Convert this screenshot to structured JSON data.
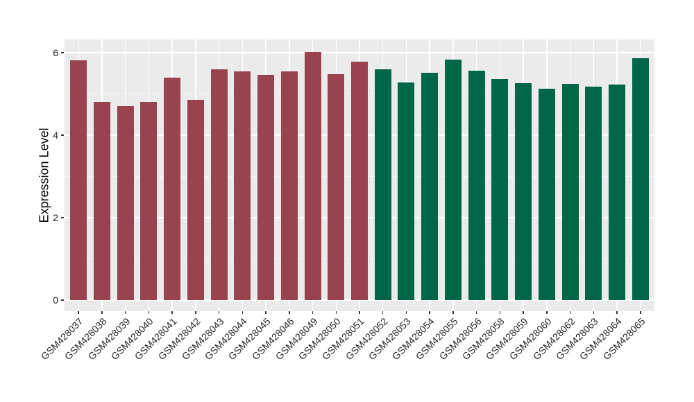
{
  "chart_data": {
    "type": "bar",
    "title": "",
    "xlabel": "",
    "ylabel": "Expression Level",
    "categories": [
      "GSM428037",
      "GSM428038",
      "GSM428039",
      "GSM428040",
      "GSM428041",
      "GSM428042",
      "GSM428043",
      "GSM428044",
      "GSM428045",
      "GSM428046",
      "GSM428049",
      "GSM428050",
      "GSM428051",
      "GSM428052",
      "GSM428053",
      "GSM428054",
      "GSM428055",
      "GSM428056",
      "GSM428058",
      "GSM428059",
      "GSM428060",
      "GSM428062",
      "GSM428063",
      "GSM428064",
      "GSM428065"
    ],
    "values": [
      5.82,
      4.8,
      4.71,
      4.81,
      5.4,
      4.86,
      5.59,
      5.55,
      5.47,
      5.55,
      6.02,
      5.48,
      5.78,
      5.6,
      5.28,
      5.51,
      5.84,
      5.57,
      5.36,
      5.26,
      5.12,
      5.24,
      5.17,
      5.23,
      5.86
    ],
    "bar_groups": [
      "group1",
      "group1",
      "group1",
      "group1",
      "group1",
      "group1",
      "group1",
      "group1",
      "group1",
      "group1",
      "group1",
      "group1",
      "group1",
      "group2",
      "group2",
      "group2",
      "group2",
      "group2",
      "group2",
      "group2",
      "group2",
      "group2",
      "group2",
      "group2",
      "group2"
    ],
    "group_colors": {
      "group1": "#994350",
      "group2": "#006648"
    },
    "yticks": [
      0,
      2,
      4,
      6
    ],
    "y_minor_ticks": [
      1,
      3,
      5
    ],
    "ylim": [
      -0.27,
      6.32
    ],
    "x_tick_angle_deg": 45,
    "legend_position": "none",
    "grid": "major-and-minor",
    "panel_background": "#EBEBEB",
    "gridline_color": "#FFFFFF",
    "tick_mark_color": "#333333",
    "axis_text_color": "#262626"
  }
}
